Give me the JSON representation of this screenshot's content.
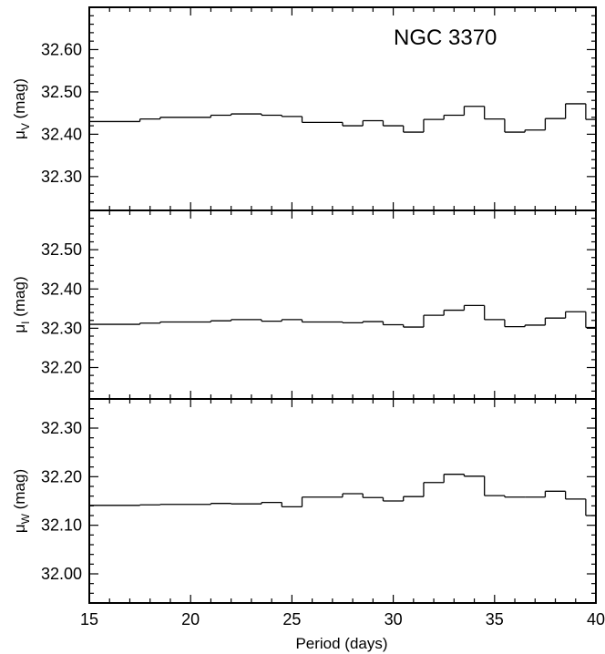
{
  "chart_data": {
    "type": "line",
    "title": "NGC 3370",
    "xlabel": "Period (days)",
    "xlim": [
      15,
      40
    ],
    "x_ticks": [
      "15",
      "20",
      "25",
      "30",
      "35",
      "40"
    ],
    "panels": [
      {
        "id": "V",
        "ylabel_main": "μ",
        "ylabel_sub": "V",
        "ylabel_unit": "(mag)",
        "ylim": [
          32.22,
          32.7
        ],
        "y_ticks": [
          "32.30",
          "32.40",
          "32.50",
          "32.60"
        ],
        "y_tick_values": [
          32.3,
          32.4,
          32.5,
          32.6
        ],
        "bins": [
          {
            "x0": 15.0,
            "x1": 17.5,
            "y": 32.43
          },
          {
            "x0": 17.5,
            "x1": 18.5,
            "y": 32.436
          },
          {
            "x0": 18.5,
            "x1": 21.0,
            "y": 32.44
          },
          {
            "x0": 21.0,
            "x1": 22.0,
            "y": 32.445
          },
          {
            "x0": 22.0,
            "x1": 23.5,
            "y": 32.448
          },
          {
            "x0": 23.5,
            "x1": 24.5,
            "y": 32.445
          },
          {
            "x0": 24.5,
            "x1": 25.5,
            "y": 32.442
          },
          {
            "x0": 25.5,
            "x1": 27.5,
            "y": 32.428
          },
          {
            "x0": 27.5,
            "x1": 28.5,
            "y": 32.42
          },
          {
            "x0": 28.5,
            "x1": 29.5,
            "y": 32.432
          },
          {
            "x0": 29.5,
            "x1": 30.5,
            "y": 32.42
          },
          {
            "x0": 30.5,
            "x1": 31.5,
            "y": 32.405
          },
          {
            "x0": 31.5,
            "x1": 32.5,
            "y": 32.435
          },
          {
            "x0": 32.5,
            "x1": 33.5,
            "y": 32.445
          },
          {
            "x0": 33.5,
            "x1": 34.5,
            "y": 32.466
          },
          {
            "x0": 34.5,
            "x1": 35.5,
            "y": 32.436
          },
          {
            "x0": 35.5,
            "x1": 36.5,
            "y": 32.405
          },
          {
            "x0": 36.5,
            "x1": 37.5,
            "y": 32.41
          },
          {
            "x0": 37.5,
            "x1": 38.5,
            "y": 32.437
          },
          {
            "x0": 38.5,
            "x1": 39.5,
            "y": 32.472
          },
          {
            "x0": 39.5,
            "x1": 40.0,
            "y": 32.435
          }
        ]
      },
      {
        "id": "I",
        "ylabel_main": "μ",
        "ylabel_sub": "I",
        "ylabel_unit": "(mag)",
        "ylim": [
          32.12,
          32.6
        ],
        "y_ticks": [
          "32.20",
          "32.30",
          "32.40",
          "32.50"
        ],
        "y_tick_values": [
          32.2,
          32.3,
          32.4,
          32.5
        ],
        "bins": [
          {
            "x0": 15.0,
            "x1": 17.5,
            "y": 32.31
          },
          {
            "x0": 17.5,
            "x1": 18.5,
            "y": 32.313
          },
          {
            "x0": 18.5,
            "x1": 21.0,
            "y": 32.316
          },
          {
            "x0": 21.0,
            "x1": 22.0,
            "y": 32.319
          },
          {
            "x0": 22.0,
            "x1": 23.5,
            "y": 32.322
          },
          {
            "x0": 23.5,
            "x1": 24.5,
            "y": 32.318
          },
          {
            "x0": 24.5,
            "x1": 25.5,
            "y": 32.322
          },
          {
            "x0": 25.5,
            "x1": 27.5,
            "y": 32.316
          },
          {
            "x0": 27.5,
            "x1": 28.5,
            "y": 32.314
          },
          {
            "x0": 28.5,
            "x1": 29.5,
            "y": 32.317
          },
          {
            "x0": 29.5,
            "x1": 30.5,
            "y": 32.309
          },
          {
            "x0": 30.5,
            "x1": 31.5,
            "y": 32.303
          },
          {
            "x0": 31.5,
            "x1": 32.5,
            "y": 32.333
          },
          {
            "x0": 32.5,
            "x1": 33.5,
            "y": 32.346
          },
          {
            "x0": 33.5,
            "x1": 34.5,
            "y": 32.358
          },
          {
            "x0": 34.5,
            "x1": 35.5,
            "y": 32.322
          },
          {
            "x0": 35.5,
            "x1": 36.5,
            "y": 32.304
          },
          {
            "x0": 36.5,
            "x1": 37.5,
            "y": 32.308
          },
          {
            "x0": 37.5,
            "x1": 38.5,
            "y": 32.326
          },
          {
            "x0": 38.5,
            "x1": 39.5,
            "y": 32.342
          },
          {
            "x0": 39.5,
            "x1": 40.0,
            "y": 32.302
          }
        ]
      },
      {
        "id": "W",
        "ylabel_main": "μ",
        "ylabel_sub": "W",
        "ylabel_unit": "(mag)",
        "ylim": [
          31.94,
          32.36
        ],
        "y_ticks": [
          "32.00",
          "32.10",
          "32.20",
          "32.30"
        ],
        "y_tick_values": [
          32.0,
          32.1,
          32.2,
          32.3
        ],
        "bins": [
          {
            "x0": 15.0,
            "x1": 17.5,
            "y": 32.141
          },
          {
            "x0": 17.5,
            "x1": 18.5,
            "y": 32.142
          },
          {
            "x0": 18.5,
            "x1": 21.0,
            "y": 32.143
          },
          {
            "x0": 21.0,
            "x1": 22.0,
            "y": 32.145
          },
          {
            "x0": 22.0,
            "x1": 23.5,
            "y": 32.144
          },
          {
            "x0": 23.5,
            "x1": 24.5,
            "y": 32.147
          },
          {
            "x0": 24.5,
            "x1": 25.5,
            "y": 32.138
          },
          {
            "x0": 25.5,
            "x1": 27.5,
            "y": 32.158
          },
          {
            "x0": 27.5,
            "x1": 28.5,
            "y": 32.165
          },
          {
            "x0": 28.5,
            "x1": 29.5,
            "y": 32.157
          },
          {
            "x0": 29.5,
            "x1": 30.5,
            "y": 32.15
          },
          {
            "x0": 30.5,
            "x1": 31.5,
            "y": 32.159
          },
          {
            "x0": 31.5,
            "x1": 32.5,
            "y": 32.188
          },
          {
            "x0": 32.5,
            "x1": 33.5,
            "y": 32.205
          },
          {
            "x0": 33.5,
            "x1": 34.5,
            "y": 32.201
          },
          {
            "x0": 34.5,
            "x1": 35.5,
            "y": 32.161
          },
          {
            "x0": 35.5,
            "x1": 36.5,
            "y": 32.158
          },
          {
            "x0": 36.5,
            "x1": 37.5,
            "y": 32.158
          },
          {
            "x0": 37.5,
            "x1": 38.5,
            "y": 32.17
          },
          {
            "x0": 38.5,
            "x1": 39.5,
            "y": 32.154
          },
          {
            "x0": 39.5,
            "x1": 40.0,
            "y": 32.12
          }
        ]
      }
    ]
  }
}
